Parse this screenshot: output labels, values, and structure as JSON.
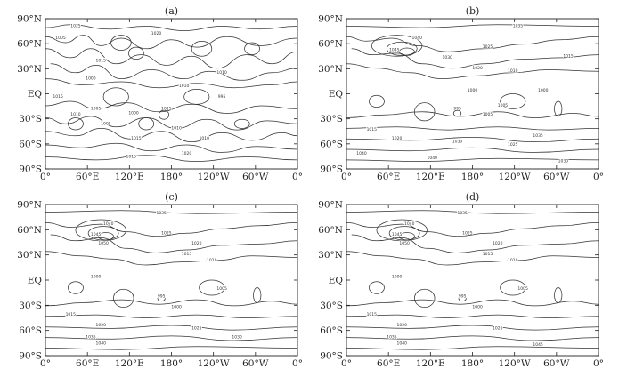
{
  "panels": [
    {
      "id": "a",
      "label": "(a)"
    },
    {
      "id": "b",
      "label": "(b)"
    },
    {
      "id": "c",
      "label": "(c)"
    },
    {
      "id": "d",
      "label": "(d)"
    }
  ],
  "axes": {
    "lat_labels": [
      "90°N",
      "60°N",
      "30°N",
      "EQ",
      "30°S",
      "60°S",
      "90°S"
    ],
    "lon_labels": [
      "0°",
      "60°E",
      "120°E",
      "180°",
      "120°W",
      "60°W",
      "0°"
    ]
  },
  "contour_labels": {
    "a": [
      "1025",
      "1005",
      "1020",
      "1015",
      "1010",
      "1000",
      "1010",
      "1015",
      "1005",
      "1010",
      "1015",
      "995",
      "1000",
      "1005",
      "1010",
      "1015",
      "1010",
      "1020",
      "1015"
    ],
    "b": [
      "1035",
      "1040",
      "1045",
      "1030",
      "1025",
      "1015",
      "1020",
      "1010",
      "1000",
      "1005",
      "995",
      "1000",
      "1005",
      "1015",
      "1020",
      "1030",
      "1035",
      "1025",
      "1040",
      "1040",
      "1030"
    ],
    "c": [
      "1035",
      "1040",
      "1045",
      "1050",
      "1025",
      "1020",
      "1015",
      "1010",
      "1000",
      "1005",
      "995",
      "1000",
      "1015",
      "1020",
      "1025",
      "1035",
      "1040",
      "1030"
    ],
    "d": [
      "1035",
      "1040",
      "1045",
      "1050",
      "1025",
      "1020",
      "1015",
      "1010",
      "1000",
      "1005",
      "995",
      "1000",
      "1015",
      "1020",
      "1025",
      "1035",
      "1040",
      "1045"
    ]
  }
}
